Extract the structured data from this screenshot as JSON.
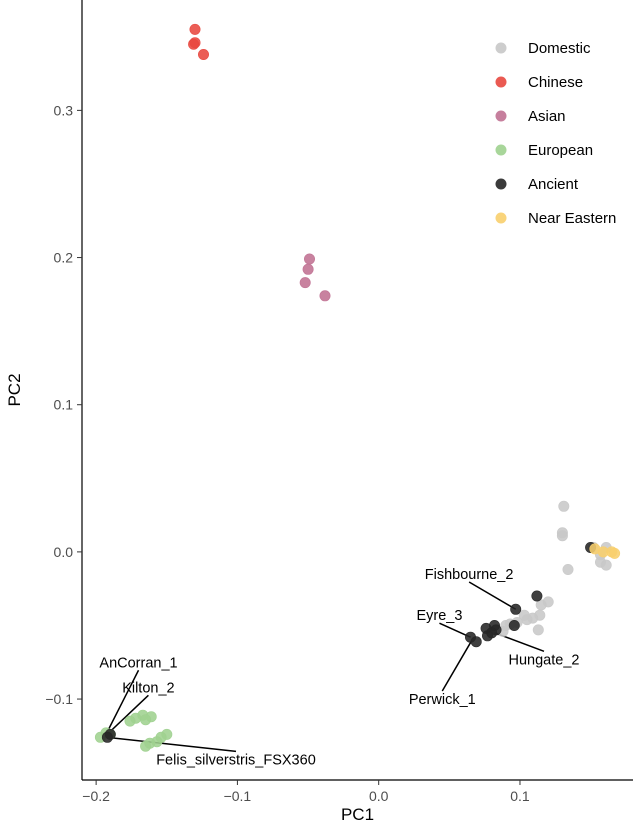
{
  "chart_data": {
    "type": "scatter",
    "xlabel": "PC1",
    "ylabel": "PC2",
    "xlim": [
      -0.21,
      0.18
    ],
    "ylim": [
      -0.155,
      0.375
    ],
    "x_ticks": [
      -0.2,
      -0.1,
      0.0,
      0.1
    ],
    "x_tick_labels": [
      "−0.2",
      "−0.1",
      "0.0",
      "0.1"
    ],
    "y_ticks": [
      -0.1,
      0.0,
      0.1,
      0.2,
      0.3
    ],
    "y_tick_labels": [
      "−0.1",
      "0.0",
      "0.1",
      "0.2",
      "0.3"
    ],
    "grid": false,
    "legend_position": "top-right",
    "series": [
      {
        "name": "Domestic",
        "color": "#c8c8c8",
        "points": [
          [
            0.131,
            0.031
          ],
          [
            0.13,
            0.013
          ],
          [
            0.13,
            0.011
          ],
          [
            0.134,
            -0.012
          ],
          [
            0.152,
            0.003
          ],
          [
            0.157,
            -0.002
          ],
          [
            0.161,
            0.003
          ],
          [
            0.157,
            -0.007
          ],
          [
            0.161,
            -0.009
          ],
          [
            0.12,
            -0.034
          ],
          [
            0.115,
            -0.036
          ],
          [
            0.114,
            -0.043
          ],
          [
            0.109,
            -0.045
          ],
          [
            0.105,
            -0.046
          ],
          [
            0.103,
            -0.043
          ],
          [
            0.098,
            -0.048
          ],
          [
            0.093,
            -0.049
          ],
          [
            0.09,
            -0.05
          ],
          [
            0.113,
            -0.053
          ],
          [
            0.088,
            -0.054
          ]
        ]
      },
      {
        "name": "Chinese",
        "color": "#e8483f",
        "points": [
          [
            -0.13,
            0.355
          ],
          [
            -0.13,
            0.346
          ],
          [
            -0.131,
            0.345
          ],
          [
            -0.124,
            0.338
          ]
        ]
      },
      {
        "name": "Asian",
        "color": "#c07192",
        "points": [
          [
            -0.049,
            0.199
          ],
          [
            -0.05,
            0.192
          ],
          [
            -0.052,
            0.183
          ],
          [
            -0.038,
            0.174
          ]
        ]
      },
      {
        "name": "European",
        "color": "#9fd18f",
        "points": [
          [
            -0.197,
            -0.126
          ],
          [
            -0.193,
            -0.123
          ],
          [
            -0.19,
            -0.124
          ],
          [
            -0.167,
            -0.111
          ],
          [
            -0.172,
            -0.113
          ],
          [
            -0.176,
            -0.115
          ],
          [
            -0.161,
            -0.112
          ],
          [
            -0.165,
            -0.114
          ],
          [
            -0.15,
            -0.124
          ],
          [
            -0.154,
            -0.126
          ],
          [
            -0.157,
            -0.129
          ],
          [
            -0.162,
            -0.13
          ],
          [
            -0.165,
            -0.132
          ]
        ]
      },
      {
        "name": "Ancient",
        "color": "#262626",
        "points": [
          [
            -0.19,
            -0.124
          ],
          [
            -0.192,
            -0.126
          ],
          [
            0.15,
            0.003
          ],
          [
            0.097,
            -0.039
          ],
          [
            0.112,
            -0.03
          ],
          [
            0.065,
            -0.058
          ],
          [
            0.069,
            -0.061
          ],
          [
            0.076,
            -0.052
          ],
          [
            0.082,
            -0.05
          ],
          [
            0.08,
            -0.055
          ],
          [
            0.083,
            -0.053
          ],
          [
            0.077,
            -0.057
          ],
          [
            0.096,
            -0.05
          ]
        ]
      },
      {
        "name": "Near Eastern",
        "color": "#f8cf6d",
        "points": [
          [
            0.153,
            0.002
          ],
          [
            0.159,
            0.0
          ],
          [
            0.165,
            0.0
          ],
          [
            0.167,
            -0.001
          ]
        ]
      }
    ],
    "annotations": [
      {
        "label": "AnCorran_1",
        "point": [
          -0.193,
          -0.124
        ],
        "text_pos": [
          -0.17,
          -0.075
        ]
      },
      {
        "label": "Kilton_2",
        "point": [
          -0.19,
          -0.122
        ],
        "text_pos": [
          -0.163,
          -0.092
        ]
      },
      {
        "label": "Felis_silverstris_FSX360",
        "point": [
          -0.192,
          -0.126
        ],
        "text_pos": [
          -0.101,
          -0.141
        ]
      },
      {
        "label": "Fishbourne_2",
        "point": [
          0.097,
          -0.039
        ],
        "text_pos": [
          0.064,
          -0.015
        ]
      },
      {
        "label": "Eyre_3",
        "point": [
          0.065,
          -0.058
        ],
        "text_pos": [
          0.043,
          -0.043
        ]
      },
      {
        "label": "Hungate_2",
        "point": [
          0.082,
          -0.055
        ],
        "text_pos": [
          0.117,
          -0.073
        ]
      },
      {
        "label": "Perwick_1",
        "point": [
          0.066,
          -0.06
        ],
        "text_pos": [
          0.045,
          -0.1
        ]
      }
    ]
  }
}
